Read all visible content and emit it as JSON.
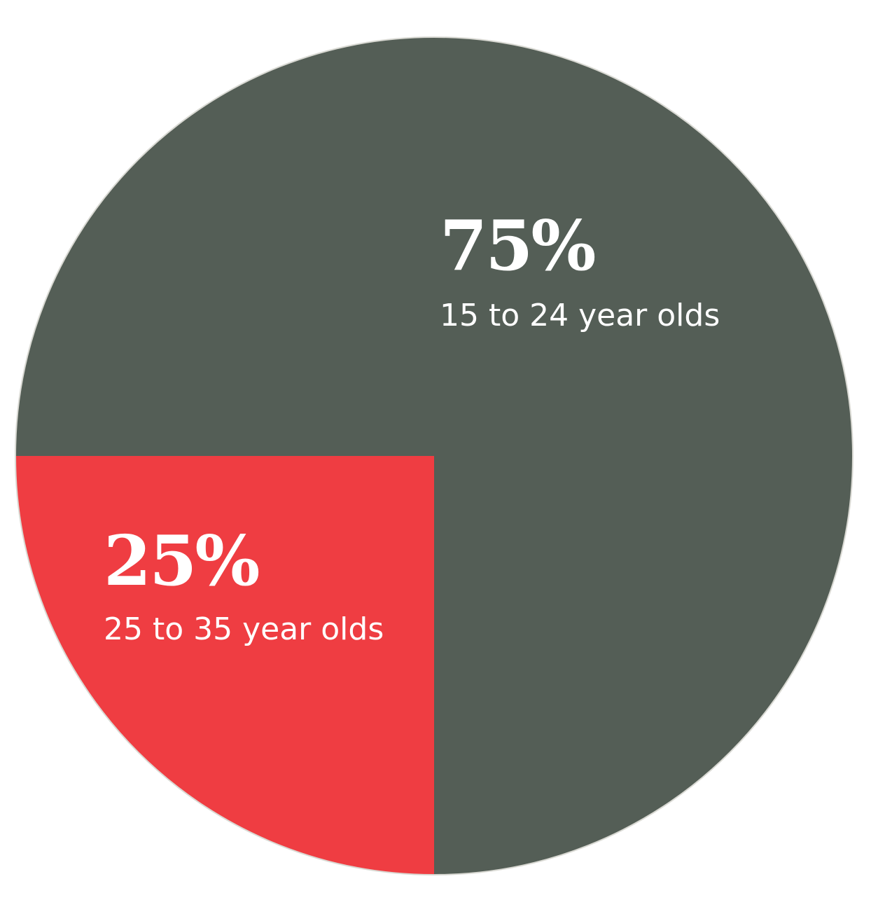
{
  "chart_data": {
    "type": "pie",
    "categories": [
      "15 to 24 year olds",
      "25 to 35 year olds"
    ],
    "values": [
      75,
      25
    ],
    "value_labels": [
      "75%",
      "25%"
    ],
    "colors": [
      "#545e56",
      "#ef3d42"
    ],
    "start_angle_deg": 180,
    "direction": "clockwise",
    "legend": "none",
    "label_color": "#ffffff"
  }
}
